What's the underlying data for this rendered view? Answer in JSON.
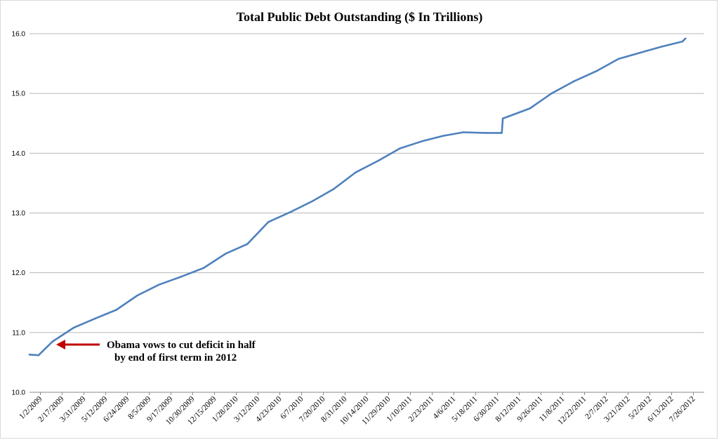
{
  "chart_data": {
    "type": "line",
    "title": "Total Public Debt Outstanding ($ In Trillions)",
    "xlabel": "",
    "ylabel": "",
    "ylim": [
      10.0,
      16.0
    ],
    "yticks": [
      "10.0",
      "11.0",
      "12.0",
      "13.0",
      "14.0",
      "15.0",
      "16.0"
    ],
    "x_tick_labels": [
      "1/2/2009",
      "2/17/2009",
      "3/31/2009",
      "5/12/2009",
      "6/24/2009",
      "8/5/2009",
      "9/17/2009",
      "10/30/2009",
      "12/15/2009",
      "1/28/2010",
      "3/12/2010",
      "4/23/2010",
      "6/7/2010",
      "7/20/2010",
      "8/31/2010",
      "10/14/2010",
      "11/29/2010",
      "1/10/2011",
      "2/23/2011",
      "4/6/2011",
      "5/18/2011",
      "6/30/2011",
      "8/12/2011",
      "9/26/2011",
      "11/8/2011",
      "12/22/2011",
      "2/7/2012",
      "3/21/2012",
      "5/2/2012",
      "6/13/2012",
      "7/26/2012"
    ],
    "grid": "horizontal",
    "series_color": "#4f81bd",
    "series": [
      {
        "x": [
          "1/2/2009",
          "1/20/2009",
          "2/17/2009",
          "3/31/2009",
          "5/12/2009",
          "6/24/2009",
          "8/5/2009",
          "9/17/2009",
          "10/30/2009",
          "12/15/2009",
          "1/28/2010",
          "3/12/2010",
          "4/23/2010",
          "6/7/2010",
          "7/20/2010",
          "8/31/2010",
          "10/14/2010",
          "11/29/2010",
          "1/10/2011",
          "2/23/2011",
          "4/6/2011",
          "5/16/2011",
          "6/30/2011",
          "8/1/2011",
          "8/3/2011",
          "9/26/2011",
          "11/8/2011",
          "12/22/2011",
          "2/7/2012",
          "3/21/2012",
          "5/2/2012",
          "6/13/2012",
          "7/26/2012",
          "8/1/2012"
        ],
        "values": [
          10.63,
          10.62,
          10.85,
          11.08,
          11.23,
          11.38,
          11.62,
          11.8,
          11.93,
          12.08,
          12.32,
          12.48,
          12.85,
          13.02,
          13.2,
          13.4,
          13.68,
          13.88,
          14.08,
          14.2,
          14.29,
          14.35,
          14.34,
          14.34,
          14.58,
          14.75,
          15.0,
          15.2,
          15.38,
          15.58,
          15.68,
          15.78,
          15.87,
          15.92
        ]
      }
    ]
  },
  "annotation": {
    "line1": "Obama vows to cut deficit in half",
    "line2": "by end of first term in 2012",
    "arrow_color": "#c00000"
  }
}
